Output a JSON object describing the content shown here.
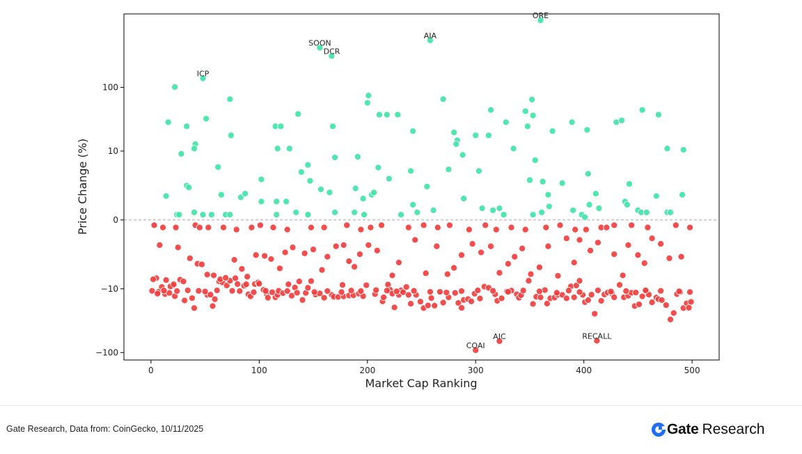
{
  "chart_data": {
    "type": "scatter",
    "xlabel": "Market Cap Ranking",
    "ylabel": "Price Change (%)",
    "scale": "symlog",
    "xlim": [
      -25,
      525
    ],
    "ylim": [
      -130,
      1300
    ],
    "x_ticks": [
      0,
      100,
      200,
      300,
      400,
      500
    ],
    "y_ticks": [
      {
        "value": 100,
        "label": "100"
      },
      {
        "value": 10,
        "label": "10"
      },
      {
        "value": 0,
        "label": "0"
      },
      {
        "value": -10,
        "label": "−10"
      },
      {
        "value": -100,
        "label": "−100"
      }
    ],
    "zero_line": true,
    "grid": false,
    "colors": {
      "positive": "#3ee3a6",
      "negative": "#f23b3b",
      "marker_edge": "#ffffff",
      "zero_line": "#888888"
    },
    "annotations": [
      {
        "label": "ORE",
        "x": 360,
        "y": 1040
      },
      {
        "label": "AIA",
        "x": 258,
        "y": 520
      },
      {
        "label": "SOON",
        "x": 156,
        "y": 400
      },
      {
        "label": "DCR",
        "x": 167,
        "y": 300
      },
      {
        "label": "ICP",
        "x": 48,
        "y": 137
      },
      {
        "label": "COAI",
        "x": 300,
        "y": -92
      },
      {
        "label": "AIC",
        "x": 322,
        "y": -67
      },
      {
        "label": "RECALL",
        "x": 412,
        "y": -66
      }
    ],
    "positive": [
      [
        360,
        1040
      ],
      [
        258,
        520
      ],
      [
        156,
        400
      ],
      [
        167,
        300
      ],
      [
        48,
        137
      ],
      [
        22,
        101
      ],
      [
        201,
        75
      ],
      [
        73,
        66
      ],
      [
        200,
        58
      ],
      [
        270,
        66
      ],
      [
        352,
        65
      ],
      [
        314,
        45
      ],
      [
        346,
        43
      ],
      [
        454,
        45
      ],
      [
        136,
        39
      ],
      [
        218,
        38
      ],
      [
        228,
        38
      ],
      [
        353,
        37
      ],
      [
        469,
        38
      ],
      [
        16,
        29
      ],
      [
        33,
        25
      ],
      [
        51,
        33
      ],
      [
        115,
        25
      ],
      [
        120,
        25
      ],
      [
        168,
        25
      ],
      [
        211,
        38
      ],
      [
        242,
        21
      ],
      [
        312,
        18
      ],
      [
        328,
        29
      ],
      [
        348,
        25
      ],
      [
        371,
        21
      ],
      [
        389,
        29
      ],
      [
        403,
        22
      ],
      [
        430,
        29
      ],
      [
        435,
        31
      ],
      [
        74,
        18
      ],
      [
        280,
        20
      ],
      [
        283,
        15
      ],
      [
        282,
        13
      ],
      [
        300,
        18
      ],
      [
        41,
        13
      ],
      [
        40,
        11
      ],
      [
        117,
        11
      ],
      [
        128,
        11
      ],
      [
        335,
        11
      ],
      [
        477,
        11
      ],
      [
        492,
        10.5
      ],
      [
        28,
        9
      ],
      [
        170,
        7.8
      ],
      [
        191,
        8
      ],
      [
        288,
        8.6
      ],
      [
        355,
        7
      ],
      [
        62,
        5.3
      ],
      [
        145,
        5.8
      ],
      [
        210,
        5.2
      ],
      [
        275,
        4.8
      ],
      [
        240,
        4.5
      ],
      [
        139,
        4.3
      ],
      [
        303,
        4.5
      ],
      [
        404,
        4.0
      ],
      [
        102,
        3.1
      ],
      [
        220,
        3.2
      ],
      [
        350,
        3.0
      ],
      [
        147,
        2.9
      ],
      [
        362,
        2.8
      ],
      [
        442,
        2.5
      ],
      [
        33,
        2.3
      ],
      [
        35,
        2.1
      ],
      [
        157,
        1.9
      ],
      [
        165,
        1.6
      ],
      [
        189,
        2.0
      ],
      [
        255,
        2.2
      ],
      [
        380,
        2.6
      ],
      [
        14,
        1.3
      ],
      [
        65,
        1.4
      ],
      [
        83,
        1.2
      ],
      [
        87,
        1.5
      ],
      [
        196,
        1.1
      ],
      [
        204,
        1.4
      ],
      [
        206,
        1.6
      ],
      [
        289,
        1.1
      ],
      [
        367,
        1.4
      ],
      [
        411,
        1.5
      ],
      [
        467,
        1.3
      ],
      [
        491,
        1.4
      ],
      [
        102,
        0.9
      ],
      [
        116,
        0.9
      ],
      [
        125,
        0.9
      ],
      [
        242,
        0.7
      ],
      [
        261,
        0.4
      ],
      [
        306,
        0.5
      ],
      [
        322,
        0.5
      ],
      [
        368,
        0.6
      ],
      [
        390,
        0.4
      ],
      [
        405,
        0.7
      ],
      [
        414,
        0.5
      ],
      [
        438,
        0.9
      ],
      [
        440,
        0.7
      ],
      [
        450,
        0.4
      ],
      [
        453,
        0.3
      ],
      [
        458,
        0.3
      ],
      [
        477,
        0.3
      ],
      [
        480,
        0.3
      ],
      [
        246,
        0.3
      ],
      [
        316,
        0.4
      ],
      [
        398,
        0.2
      ],
      [
        361,
        0.3
      ],
      [
        24,
        0.2
      ],
      [
        26,
        0.2
      ],
      [
        40,
        0.3
      ],
      [
        48,
        0.2
      ],
      [
        56,
        0.2
      ],
      [
        69,
        0.2
      ],
      [
        73,
        0.2
      ],
      [
        116,
        0.2
      ],
      [
        134,
        0.3
      ],
      [
        145,
        0.2
      ],
      [
        170,
        0.3
      ],
      [
        188,
        0.3
      ],
      [
        197,
        0.2
      ],
      [
        231,
        0.2
      ],
      [
        326,
        0.2
      ],
      [
        353,
        0.2
      ],
      [
        401,
        0.1
      ]
    ],
    "negative": [
      [
        412,
        -66
      ],
      [
        322,
        -67
      ],
      [
        300,
        -92
      ],
      [
        5,
        -6.6
      ],
      [
        2,
        -6.9
      ],
      [
        10,
        -9.3
      ],
      [
        20,
        -8.9
      ],
      [
        18,
        -9.1
      ],
      [
        21,
        -8.4
      ],
      [
        14,
        -7.1
      ],
      [
        27,
        -7.0
      ],
      [
        30,
        -7.5
      ],
      [
        7,
        -11.2
      ],
      [
        13,
        -12.2
      ],
      [
        17,
        -11.7
      ],
      [
        22,
        -13.2
      ],
      [
        31,
        -15.5
      ],
      [
        38,
        -14.2
      ],
      [
        40,
        -20.5
      ],
      [
        52,
        -12.6
      ],
      [
        55,
        -12.5
      ],
      [
        57,
        -19.0
      ],
      [
        59,
        -14.8
      ],
      [
        63,
        -7.5
      ],
      [
        66,
        -7.8
      ],
      [
        70,
        -8.8
      ],
      [
        73,
        -7.3
      ],
      [
        78,
        -6.6
      ],
      [
        80,
        -8.3
      ],
      [
        86,
        -8.9
      ],
      [
        88,
        -8.4
      ],
      [
        90,
        -12.3
      ],
      [
        92,
        -13.3
      ],
      [
        96,
        -8.3
      ],
      [
        99,
        -7.8
      ],
      [
        100,
        -8.2
      ],
      [
        104,
        -10.4
      ],
      [
        107,
        -12.2
      ],
      [
        108,
        -14.0
      ],
      [
        115,
        -13.8
      ],
      [
        117,
        -12.6
      ],
      [
        118,
        -10.8
      ],
      [
        122,
        -11.8
      ],
      [
        127,
        -8.4
      ],
      [
        130,
        -13.0
      ],
      [
        133,
        -9.5
      ],
      [
        137,
        -7.5
      ],
      [
        140,
        -15.2
      ],
      [
        143,
        -11.7
      ],
      [
        145,
        -9.6
      ],
      [
        148,
        -7.4
      ],
      [
        152,
        -12.4
      ],
      [
        156,
        -11.9
      ],
      [
        160,
        -14.0
      ],
      [
        167,
        -12.6
      ],
      [
        169,
        -13.5
      ],
      [
        173,
        -13.6
      ],
      [
        177,
        -8.6
      ],
      [
        178,
        -13.3
      ],
      [
        183,
        -12.9
      ],
      [
        187,
        -12.8
      ],
      [
        192,
        -12.0
      ],
      [
        196,
        -13.2
      ],
      [
        199,
        -8.7
      ],
      [
        207,
        -12.2
      ],
      [
        214,
        -16.0
      ],
      [
        215,
        -13.8
      ],
      [
        219,
        -8.5
      ],
      [
        221,
        -10.4
      ],
      [
        223,
        -12.0
      ],
      [
        225,
        -20.0
      ],
      [
        229,
        -12.6
      ],
      [
        231,
        -10.6
      ],
      [
        233,
        -11.4
      ],
      [
        236,
        -9.3
      ],
      [
        238,
        -12.6
      ],
      [
        240,
        -17.5
      ],
      [
        245,
        -12.6
      ],
      [
        249,
        -16.2
      ],
      [
        252,
        -20.5
      ],
      [
        256,
        -18.6
      ],
      [
        259,
        -14.2
      ],
      [
        262,
        -18.8
      ],
      [
        267,
        -11.2
      ],
      [
        270,
        -16.8
      ],
      [
        275,
        -13.8
      ],
      [
        281,
        -11.7
      ],
      [
        284,
        -17.0
      ],
      [
        287,
        -20.3
      ],
      [
        289,
        -15.2
      ],
      [
        293,
        -14.7
      ],
      [
        296,
        -16.0
      ],
      [
        299,
        -12.0
      ],
      [
        304,
        -14.4
      ],
      [
        308,
        -9.2
      ],
      [
        312,
        -9.6
      ],
      [
        318,
        -12.3
      ],
      [
        320,
        -15.7
      ],
      [
        324,
        -14.3
      ],
      [
        329,
        -11.0
      ],
      [
        333,
        -10.7
      ],
      [
        338,
        -12.3
      ],
      [
        340,
        -14.0
      ],
      [
        342,
        -12.7
      ],
      [
        349,
        -7.3
      ],
      [
        353,
        -17.6
      ],
      [
        356,
        -13.5
      ],
      [
        360,
        -13.8
      ],
      [
        364,
        -10.5
      ],
      [
        366,
        -17.4
      ],
      [
        369,
        -14.3
      ],
      [
        373,
        -13.9
      ],
      [
        376,
        -12.6
      ],
      [
        380,
        -12.6
      ],
      [
        384,
        -14.3
      ],
      [
        388,
        -9.1
      ],
      [
        391,
        -13.8
      ],
      [
        393,
        -8.8
      ],
      [
        396,
        -7.3
      ],
      [
        399,
        -12.6
      ],
      [
        401,
        -16.5
      ],
      [
        404,
        -15.3
      ],
      [
        407,
        -12.5
      ],
      [
        410,
        -25.2
      ],
      [
        416,
        -15.7
      ],
      [
        419,
        -12.4
      ],
      [
        422,
        -11.5
      ],
      [
        426,
        -12.0
      ],
      [
        428,
        -13.8
      ],
      [
        433,
        -8.6
      ],
      [
        437,
        -13.8
      ],
      [
        441,
        -13.0
      ],
      [
        444,
        -11.6
      ],
      [
        447,
        -19.0
      ],
      [
        451,
        -17.9
      ],
      [
        454,
        -13.3
      ],
      [
        458,
        -11.1
      ],
      [
        460,
        -12.5
      ],
      [
        463,
        -16.6
      ],
      [
        467,
        -13.9
      ],
      [
        469,
        -14.8
      ],
      [
        472,
        -15.3
      ],
      [
        476,
        -18.4
      ],
      [
        480,
        -31.0
      ],
      [
        483,
        -24.5
      ],
      [
        486,
        -12.2
      ],
      [
        489,
        -11.3
      ],
      [
        492,
        -20.5
      ],
      [
        495,
        -17.2
      ],
      [
        497,
        -20.2
      ],
      [
        499,
        -16.3
      ],
      [
        1,
        -10.8
      ],
      [
        6,
        -12.0
      ],
      [
        12,
        -10.7
      ],
      [
        24,
        -10.9
      ],
      [
        34,
        -10.6
      ],
      [
        44,
        -10.8
      ],
      [
        50,
        -11.1
      ],
      [
        61,
        -10.6
      ],
      [
        75,
        -10.8
      ],
      [
        82,
        -10.9
      ],
      [
        95,
        -11.4
      ],
      [
        106,
        -10.8
      ],
      [
        112,
        -11.4
      ],
      [
        126,
        -10.9
      ],
      [
        135,
        -11.6
      ],
      [
        151,
        -11.3
      ],
      [
        163,
        -10.9
      ],
      [
        176,
        -11.3
      ],
      [
        185,
        -10.7
      ],
      [
        194,
        -10.9
      ],
      [
        208,
        -10.5
      ],
      [
        218,
        -10.7
      ],
      [
        227,
        -11.0
      ],
      [
        243,
        -10.8
      ],
      [
        258,
        -11.2
      ],
      [
        273,
        -11.5
      ],
      [
        287,
        -10.9
      ],
      [
        302,
        -10.6
      ],
      [
        316,
        -10.8
      ],
      [
        330,
        -11.2
      ],
      [
        344,
        -10.7
      ],
      [
        359,
        -11.0
      ],
      [
        375,
        -11.6
      ],
      [
        386,
        -10.7
      ],
      [
        396,
        -11.3
      ],
      [
        413,
        -10.6
      ],
      [
        425,
        -11.1
      ],
      [
        439,
        -10.9
      ],
      [
        448,
        -11.5
      ],
      [
        457,
        -10.6
      ],
      [
        471,
        -10.8
      ],
      [
        488,
        -11.0
      ],
      [
        498,
        -11.3
      ],
      [
        8,
        -1.4
      ],
      [
        25,
        -1.6
      ],
      [
        36,
        -2.8
      ],
      [
        43,
        -3.6
      ],
      [
        47,
        -3.7
      ],
      [
        52,
        -5.7
      ],
      [
        58,
        -5.9
      ],
      [
        64,
        -6.9
      ],
      [
        69,
        -6.5
      ],
      [
        77,
        -3.0
      ],
      [
        84,
        -4.5
      ],
      [
        89,
        -6.2
      ],
      [
        97,
        -2.4
      ],
      [
        105,
        -2.5
      ],
      [
        111,
        -2.9
      ],
      [
        119,
        -4.4
      ],
      [
        124,
        -2.1
      ],
      [
        131,
        -1.6
      ],
      [
        142,
        -2.2
      ],
      [
        150,
        -1.8
      ],
      [
        158,
        -4.7
      ],
      [
        163,
        -2.6
      ],
      [
        171,
        -1.5
      ],
      [
        178,
        -1.4
      ],
      [
        183,
        -3.2
      ],
      [
        188,
        -4.1
      ],
      [
        193,
        -2.3
      ],
      [
        201,
        -1.4
      ],
      [
        209,
        -1.9
      ],
      [
        223,
        -5.9
      ],
      [
        229,
        -3.4
      ],
      [
        244,
        -1.0
      ],
      [
        254,
        -5.4
      ],
      [
        264,
        -1.5
      ],
      [
        274,
        -5.6
      ],
      [
        280,
        -4.3
      ],
      [
        287,
        -2.4
      ],
      [
        297,
        -1.3
      ],
      [
        305,
        -2.1
      ],
      [
        314,
        -1.5
      ],
      [
        322,
        -5.3
      ],
      [
        330,
        -3.6
      ],
      [
        336,
        -2.6
      ],
      [
        343,
        -1.7
      ],
      [
        351,
        -5.6
      ],
      [
        359,
        -4.2
      ],
      [
        367,
        -1.5
      ],
      [
        376,
        -6.0
      ],
      [
        384,
        -0.9
      ],
      [
        391,
        -3.4
      ],
      [
        396,
        -1.0
      ],
      [
        406,
        -1.9
      ],
      [
        413,
        -1.2
      ],
      [
        428,
        -2.3
      ],
      [
        436,
        -5.9
      ],
      [
        441,
        -1.4
      ],
      [
        450,
        -2.4
      ],
      [
        456,
        -3.5
      ],
      [
        463,
        -0.9
      ],
      [
        471,
        -1.3
      ],
      [
        479,
        -2.8
      ],
      [
        490,
        -2.6
      ],
      [
        3,
        -0.2
      ],
      [
        11,
        -0.3
      ],
      [
        23,
        -0.3
      ],
      [
        41,
        -0.2
      ],
      [
        45,
        -0.3
      ],
      [
        53,
        -0.3
      ],
      [
        67,
        -0.3
      ],
      [
        79,
        -0.4
      ],
      [
        93,
        -0.3
      ],
      [
        101,
        -0.2
      ],
      [
        113,
        -0.3
      ],
      [
        126,
        -0.4
      ],
      [
        148,
        -0.3
      ],
      [
        160,
        -0.3
      ],
      [
        181,
        -0.2
      ],
      [
        194,
        -0.4
      ],
      [
        203,
        -0.3
      ],
      [
        213,
        -0.2
      ],
      [
        238,
        -0.3
      ],
      [
        252,
        -0.2
      ],
      [
        265,
        -0.3
      ],
      [
        276,
        -0.2
      ],
      [
        294,
        -0.4
      ],
      [
        309,
        -0.2
      ],
      [
        319,
        -0.4
      ],
      [
        333,
        -0.3
      ],
      [
        346,
        -0.4
      ],
      [
        365,
        -0.3
      ],
      [
        378,
        -0.2
      ],
      [
        392,
        -0.4
      ],
      [
        402,
        -0.4
      ],
      [
        416,
        -0.3
      ],
      [
        421,
        -0.3
      ],
      [
        428,
        -0.2
      ],
      [
        444,
        -0.2
      ],
      [
        459,
        -0.3
      ],
      [
        485,
        -0.2
      ],
      [
        498,
        -0.3
      ]
    ]
  },
  "footer": {
    "source": "Gate Research, Data from: CoinGecko, 10/11/2025",
    "brand_name": "Gate",
    "brand_suffix": "Research"
  }
}
